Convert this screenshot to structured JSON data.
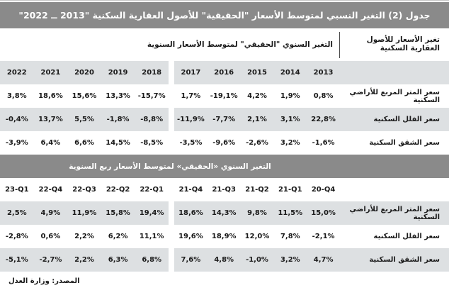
{
  "title": "جدول (2) التغير النسبي لمتوسط الأسعار \"الحقيقية\" للأصول العقارية السكنية \"2013 ــ 2022\"",
  "header": {
    "right_label": "تغير الأسعار للأصول العقارية السكنية",
    "left_label": "التغير السنوي \"الحقيقي\" لمتوسط الأسعار السنوية"
  },
  "annual": {
    "columns": [
      "2013",
      "2014",
      "2015",
      "2016",
      "2017",
      "2018",
      "2019",
      "2020",
      "2021",
      "2022"
    ],
    "rows": [
      {
        "label": "سعر المتر المربع للأراضي السكنية",
        "values": [
          "0,8%",
          "1,9%",
          "4,2%",
          "-19,1%",
          "1,7%",
          "-15,7%",
          "13,3%",
          "15,6%",
          "18,6%",
          "3,8%"
        ]
      },
      {
        "label": "سعر الفلل السكنية",
        "values": [
          "22,8%",
          "3,1%",
          "2,1%",
          "-7,7%",
          "-11,9%",
          "-8,8%",
          "-1,8%",
          "5,5%",
          "13,7%",
          "-0,4%"
        ]
      },
      {
        "label": "سعر الشقق السكنية",
        "values": [
          "-1,6%",
          "3,2%",
          "-2,6%",
          "-9,6%",
          "-3,5%",
          "-8,5%",
          "14,5%",
          "6,6%",
          "6,4%",
          "-3,9%"
        ]
      }
    ]
  },
  "quarterly": {
    "section_title": "التغير السنوي «الحقيقي» لمتوسط الأسعار ربع السنوية",
    "columns": [
      "20-Q4",
      "21-Q1",
      "21-Q2",
      "21-Q3",
      "21-Q4",
      "22-Q1",
      "22-Q2",
      "22-Q3",
      "22-Q4",
      "23-Q1"
    ],
    "rows": [
      {
        "label": "سعر المتر المربع للأراضي السكنية",
        "values": [
          "15,0%",
          "11,5%",
          "9,8%",
          "14,3%",
          "18,6%",
          "19,4%",
          "15,8%",
          "11,9%",
          "4,9%",
          "2,5%"
        ]
      },
      {
        "label": "سعر الفلل السكنية",
        "values": [
          "-2,1%",
          "7,8%",
          "12,0%",
          "18,9%",
          "19,6%",
          "11,1%",
          "6,2%",
          "2,2%",
          "0,6%",
          "-2,8%"
        ]
      },
      {
        "label": "سعر الشقق السكنية",
        "values": [
          "4,7%",
          "3,2%",
          "-1,0%",
          "4,8%",
          "7,6%",
          "6,8%",
          "6,3%",
          "2,2%",
          "-2,7%",
          "-5,1%"
        ]
      }
    ]
  },
  "footer": {
    "source": "المصدر: وزارة العدل"
  },
  "colors": {
    "bar": "#8a8a8a",
    "band": "#dde0e2",
    "text": "#1a1a1a"
  }
}
